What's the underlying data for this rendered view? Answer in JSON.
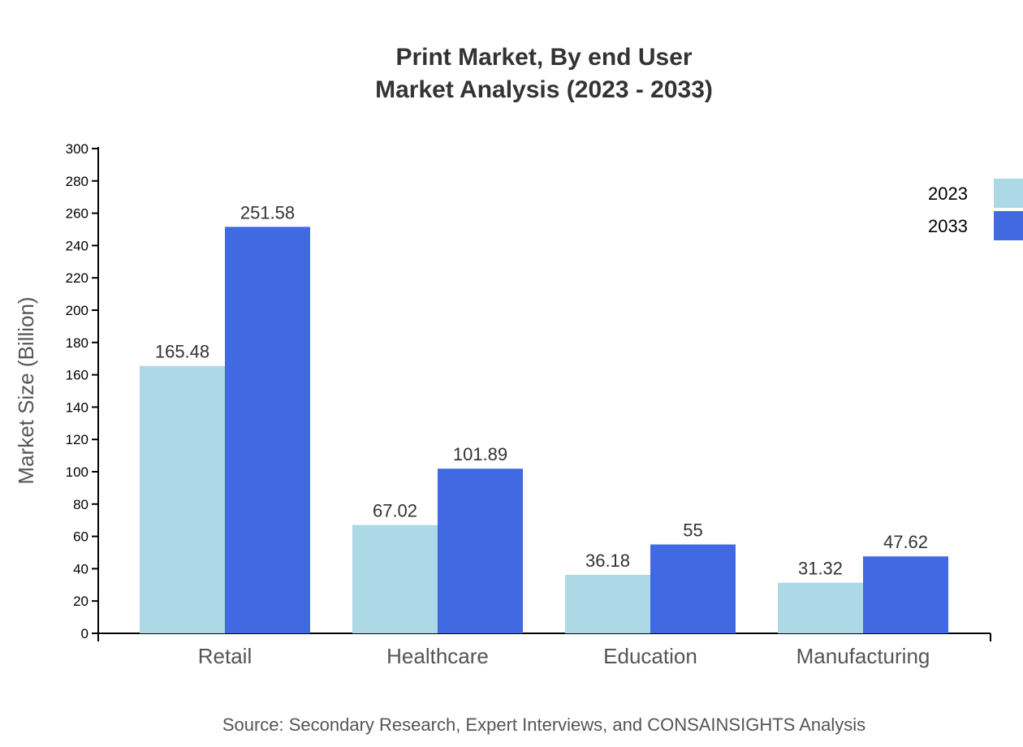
{
  "chart_data": {
    "type": "bar",
    "title": "Print Market, By end User",
    "subtitle": "Market Analysis (2023 - 2033)",
    "xlabel": "",
    "ylabel": "Market Size (Billion)",
    "ylim": [
      0,
      300
    ],
    "yticks": [
      0,
      20,
      40,
      60,
      80,
      100,
      120,
      140,
      160,
      180,
      200,
      220,
      240,
      260,
      280,
      300
    ],
    "categories": [
      "Retail",
      "Healthcare",
      "Education",
      "Manufacturing"
    ],
    "series": [
      {
        "name": "2023",
        "color": "#add8e6",
        "values": [
          165.48,
          67.02,
          36.18,
          31.32
        ]
      },
      {
        "name": "2033",
        "color": "#4169e1",
        "values": [
          251.58,
          101.89,
          55,
          47.62
        ]
      }
    ],
    "legend_position": "top-right",
    "grid": false,
    "source": "Source: Secondary Research, Expert Interviews, and CONSAINSIGHTS Analysis"
  }
}
